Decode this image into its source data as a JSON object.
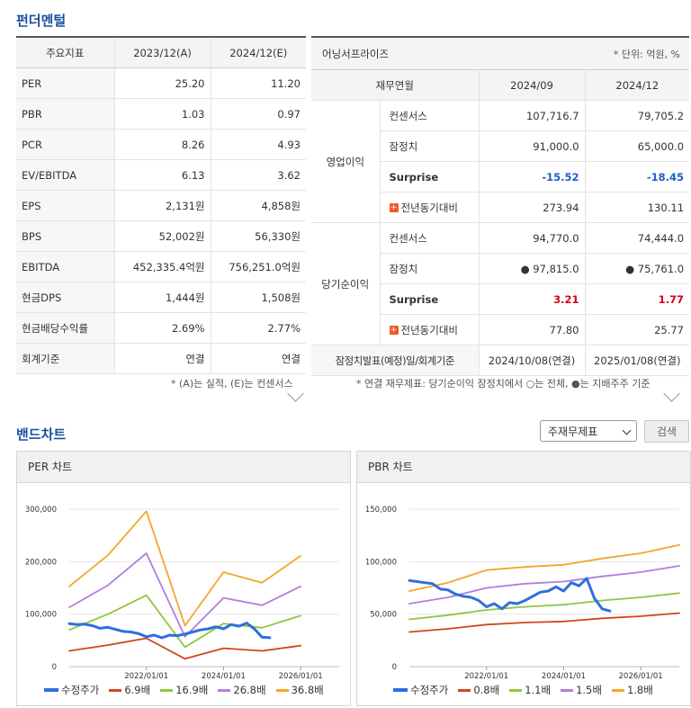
{
  "fundamentals": {
    "title": "펀더멘털",
    "left_table": {
      "headers": [
        "주요지표",
        "2023/12(A)",
        "2024/12(E)"
      ],
      "rows": [
        [
          "PER",
          "25.20",
          "11.20"
        ],
        [
          "PBR",
          "1.03",
          "0.97"
        ],
        [
          "PCR",
          "8.26",
          "4.93"
        ],
        [
          "EV/EBITDA",
          "6.13",
          "3.62"
        ],
        [
          "EPS",
          "2,131원",
          "4,858원"
        ],
        [
          "BPS",
          "52,002원",
          "56,330원"
        ],
        [
          "EBITDA",
          "452,335.4억원",
          "756,251.0억원"
        ],
        [
          "현금DPS",
          "1,444원",
          "1,508원"
        ],
        [
          "현금배당수익률",
          "2.69%",
          "2.77%"
        ],
        [
          "회계기준",
          "연결",
          "연결"
        ]
      ],
      "note": "* (A)는 실적, (E)는 컨센서스"
    },
    "right_table": {
      "title": "어닝서프라이즈",
      "unit": "* 단위: 억원, %",
      "headers": [
        "재무연월",
        "2024/09",
        "2024/12"
      ],
      "groups": [
        {
          "name": "영업이익",
          "rows": [
            {
              "label": "컨센서스",
              "v1": "107,716.7",
              "v2": "79,705.2",
              "style": ""
            },
            {
              "label": "잠정치",
              "v1": "91,000.0",
              "v2": "65,000.0",
              "style": ""
            },
            {
              "label": "Surprise",
              "v1": "-15.52",
              "v2": "-18.45",
              "style": "blue"
            },
            {
              "label": "전년동기대비",
              "v1": "273.94",
              "v2": "130.11",
              "style": "plus"
            }
          ]
        },
        {
          "name": "당기순이익",
          "rows": [
            {
              "label": "컨센서스",
              "v1": "94,770.0",
              "v2": "74,444.0",
              "style": ""
            },
            {
              "label": "잠정치",
              "v1": "● 97,815.0",
              "v2": "● 75,761.0",
              "style": ""
            },
            {
              "label": "Surprise",
              "v1": "3.21",
              "v2": "1.77",
              "style": "red"
            },
            {
              "label": "전년동기대비",
              "v1": "77.80",
              "v2": "25.77",
              "style": "plus"
            }
          ]
        }
      ],
      "footer": {
        "label": "잠정치발표(예정)일/회계기준",
        "v1": "2024/10/08(연결)",
        "v2": "2025/01/08(연결)"
      },
      "note": "* 연결 재무제표: 당기순이익 잠정치에서 ○는 전체, ●는 지배주주 기준"
    }
  },
  "band_chart": {
    "title": "밴드차트",
    "select_value": "주재무제표",
    "search_label": "검색"
  },
  "chart_data": [
    {
      "type": "line",
      "title": "PER 차트",
      "ylim": [
        0,
        300000
      ],
      "y_ticks": [
        "0",
        "100,000",
        "200,000",
        "300,000"
      ],
      "x_ticks": [
        "2022/01/01",
        "2024/01/01",
        "2026/01/01"
      ],
      "x_tick_years": [
        2022,
        2024,
        2026
      ],
      "band_x": [
        2020.0,
        2021.0,
        2022.0,
        2023.0,
        2024.0,
        2025.0,
        2026.0,
        2027.0
      ],
      "series": [
        {
          "name": "수정주가",
          "color": "#2f6fde",
          "width": 3,
          "x": [
            2020.0,
            2020.2,
            2020.4,
            2020.6,
            2020.8,
            2021.0,
            2021.2,
            2021.4,
            2021.6,
            2021.8,
            2022.0,
            2022.2,
            2022.4,
            2022.6,
            2022.8,
            2023.0,
            2023.2,
            2023.4,
            2023.6,
            2023.8,
            2024.0,
            2024.2,
            2024.4,
            2024.6,
            2024.8,
            2025.0,
            2025.2
          ],
          "values": [
            82000,
            80000,
            81000,
            78000,
            73000,
            75000,
            71000,
            67000,
            66000,
            63000,
            57000,
            60000,
            55000,
            60000,
            59000,
            62000,
            66000,
            70000,
            72000,
            76000,
            72000,
            80000,
            77000,
            83000,
            72000,
            56000,
            55000
          ]
        },
        {
          "name": "6.9배",
          "color": "#d2451e",
          "width": 1.8,
          "values": [
            30000,
            41000,
            54000,
            15000,
            35000,
            30000,
            40000
          ]
        },
        {
          "name": "16.9배",
          "color": "#8ec63f",
          "width": 1.8,
          "values": [
            70000,
            100000,
            136000,
            37000,
            82000,
            74000,
            97000
          ]
        },
        {
          "name": "26.8배",
          "color": "#b07fdc",
          "width": 1.8,
          "values": [
            113000,
            155000,
            216000,
            57000,
            131000,
            117000,
            153000
          ]
        },
        {
          "name": "36.8배",
          "color": "#f5a52c",
          "width": 1.8,
          "values": [
            153000,
            212000,
            296000,
            78000,
            180000,
            160000,
            211000
          ]
        }
      ]
    },
    {
      "type": "line",
      "title": "PBR 차트",
      "ylim": [
        0,
        150000
      ],
      "y_ticks": [
        "0",
        "50,000",
        "100,000",
        "150,000"
      ],
      "x_ticks": [
        "2022/01/01",
        "2024/01/01",
        "2026/01/01"
      ],
      "x_tick_years": [
        2022,
        2024,
        2026
      ],
      "band_x": [
        2020.0,
        2021.0,
        2022.0,
        2023.0,
        2024.0,
        2025.0,
        2026.0,
        2027.0
      ],
      "series": [
        {
          "name": "수정주가",
          "color": "#2f6fde",
          "width": 3,
          "x": [
            2020.0,
            2020.2,
            2020.4,
            2020.6,
            2020.8,
            2021.0,
            2021.2,
            2021.4,
            2021.6,
            2021.8,
            2022.0,
            2022.2,
            2022.4,
            2022.6,
            2022.8,
            2023.0,
            2023.2,
            2023.4,
            2023.6,
            2023.8,
            2024.0,
            2024.2,
            2024.4,
            2024.6,
            2024.8,
            2025.0,
            2025.2
          ],
          "values": [
            82000,
            81000,
            80000,
            79000,
            74000,
            73000,
            69000,
            67000,
            66000,
            63000,
            57000,
            60000,
            55000,
            61000,
            60000,
            63000,
            67000,
            71000,
            72000,
            76000,
            72000,
            80000,
            77000,
            84000,
            65000,
            55000,
            53000
          ]
        },
        {
          "name": "0.8배",
          "color": "#d2451e",
          "width": 1.8,
          "values": [
            33000,
            36000,
            40000,
            42000,
            43000,
            46000,
            48000,
            51000
          ]
        },
        {
          "name": "1.1배",
          "color": "#8ec63f",
          "width": 1.8,
          "values": [
            45000,
            49000,
            54000,
            57000,
            59000,
            63000,
            66000,
            70000
          ]
        },
        {
          "name": "1.5배",
          "color": "#b07fdc",
          "width": 1.8,
          "values": [
            60000,
            66000,
            75000,
            79000,
            81000,
            86000,
            90000,
            96000
          ]
        },
        {
          "name": "1.8배",
          "color": "#f5a52c",
          "width": 1.8,
          "values": [
            72000,
            80000,
            92000,
            95000,
            97000,
            103000,
            108000,
            116000
          ]
        }
      ]
    }
  ]
}
